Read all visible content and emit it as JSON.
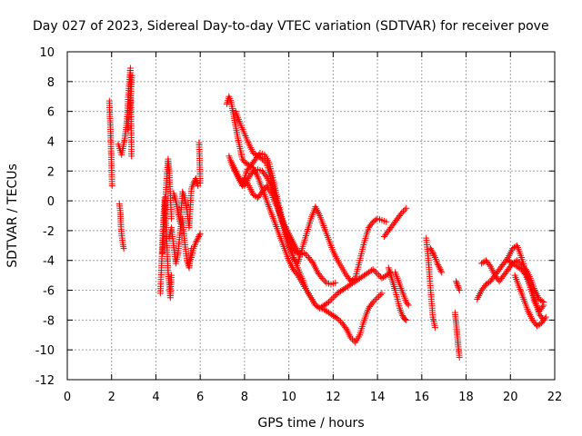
{
  "chart_data": {
    "type": "scatter",
    "title": "Day 027 of 2023, Sidereal Day-to-day VTEC variation (SDTVAR) for receiver pove",
    "xlabel": "GPS time / hours",
    "ylabel": "SDTVAR / TECUs",
    "xlim": [
      0,
      22
    ],
    "ylim": [
      -12,
      10
    ],
    "xticks": [
      0,
      2,
      4,
      6,
      8,
      10,
      12,
      14,
      16,
      18,
      20,
      22
    ],
    "yticks": [
      -12,
      -10,
      -8,
      -6,
      -4,
      -2,
      0,
      2,
      4,
      6,
      8,
      10
    ],
    "grid": true,
    "marker": "+",
    "color": "#ff0000",
    "tracks": [
      {
        "x": [
          1.9,
          1.92,
          1.95,
          1.98,
          2.0,
          2.02
        ],
        "y": [
          6.7,
          5.8,
          4.8,
          3.2,
          2.2,
          1.0
        ]
      },
      {
        "x": [
          2.35,
          2.4,
          2.42,
          2.45,
          2.5,
          2.55
        ],
        "y": [
          -0.2,
          -0.8,
          -1.6,
          -2.2,
          -2.8,
          -3.2
        ]
      },
      {
        "x": [
          2.3,
          2.45,
          2.6,
          2.7,
          2.75,
          2.8,
          2.85,
          2.9
        ],
        "y": [
          3.8,
          3.1,
          4.2,
          5.5,
          6.8,
          8.0,
          8.9,
          3.0
        ]
      },
      {
        "x": [
          2.72,
          2.78,
          2.82,
          2.87,
          2.92
        ],
        "y": [
          4.8,
          5.6,
          6.2,
          7.2,
          8.4
        ]
      },
      {
        "x": [
          4.2,
          4.25,
          4.3,
          4.35,
          4.4,
          4.45,
          4.5,
          4.55,
          4.6,
          4.65,
          4.7
        ],
        "y": [
          -6.2,
          -4.5,
          -2.5,
          -1.0,
          0.2,
          -1.5,
          -3.0,
          -4.8,
          -5.5,
          -6.5,
          -5.0
        ]
      },
      {
        "x": [
          4.3,
          4.35,
          4.4,
          4.45,
          4.5,
          4.55,
          4.6,
          4.65,
          4.7
        ],
        "y": [
          -3.5,
          -2.2,
          -0.8,
          0.6,
          1.8,
          2.8,
          2.0,
          0.5,
          -1.2
        ]
      },
      {
        "x": [
          4.6,
          4.7,
          4.8,
          4.9,
          5.0,
          5.1,
          5.2,
          5.3,
          5.4,
          5.5,
          5.6
        ],
        "y": [
          -2.5,
          -1.8,
          -3.0,
          -4.2,
          -3.5,
          -2.0,
          -1.2,
          -2.8,
          -4.0,
          -4.5,
          -3.2
        ]
      },
      {
        "x": [
          4.8,
          4.9,
          5.0,
          5.1,
          5.2,
          5.3,
          5.4,
          5.5,
          5.6,
          5.7,
          5.8,
          5.9
        ],
        "y": [
          0.5,
          0.0,
          -0.8,
          -1.5,
          0.6,
          0.2,
          -0.6,
          -1.8,
          0.8,
          1.2,
          1.5,
          1.0
        ]
      },
      {
        "x": [
          5.5,
          5.6,
          5.7,
          5.8,
          5.9,
          6.0
        ],
        "y": [
          -4.2,
          -3.8,
          -3.2,
          -2.8,
          -2.5,
          -2.2
        ]
      },
      {
        "x": [
          5.95,
          6.0
        ],
        "y": [
          3.9,
          1.2
        ]
      },
      {
        "x": [
          7.2,
          7.3,
          7.4,
          7.5,
          7.6,
          7.7,
          7.8,
          7.9,
          8.0,
          8.2,
          8.4,
          8.6,
          8.8,
          9.0,
          9.2,
          9.4,
          9.6,
          9.8,
          10.0,
          10.2,
          10.4,
          10.6,
          10.8,
          11.0,
          11.2,
          11.4,
          11.6,
          11.8,
          12.0,
          12.2,
          12.4,
          12.6,
          12.8,
          13.0,
          13.2,
          13.4,
          13.6,
          13.8,
          14.0,
          14.2,
          14.4,
          14.6
        ],
        "y": [
          6.5,
          7.0,
          6.6,
          5.8,
          5.0,
          4.2,
          3.5,
          2.8,
          2.6,
          2.4,
          2.2,
          1.6,
          0.8,
          0.0,
          -0.8,
          -1.6,
          -2.4,
          -3.2,
          -4.0,
          -4.6,
          -5.0,
          -5.5,
          -6.0,
          -6.5,
          -7.0,
          -7.2,
          -7.0,
          -6.8,
          -6.5,
          -6.2,
          -6.0,
          -5.8,
          -5.6,
          -5.4,
          -5.2,
          -5.0,
          -4.8,
          -4.6,
          -4.9,
          -5.2,
          -5.0,
          -4.8
        ]
      },
      {
        "x": [
          7.6,
          7.8,
          8.0,
          8.2,
          8.4,
          8.6,
          8.8,
          9.0,
          9.2,
          9.4,
          9.6,
          9.8,
          10.0,
          10.2,
          10.4,
          10.6,
          10.8,
          11.0,
          11.2,
          11.4,
          11.6,
          11.8,
          12.0,
          12.2,
          12.4,
          12.6,
          12.8,
          13.0,
          13.2,
          13.4,
          13.6,
          13.8,
          14.0,
          14.2
        ],
        "y": [
          6.0,
          5.2,
          4.5,
          3.8,
          3.2,
          3.0,
          2.8,
          2.5,
          1.5,
          0.2,
          -1.0,
          -2.0,
          -3.0,
          -3.8,
          -4.5,
          -5.2,
          -6.0,
          -6.5,
          -7.0,
          -7.2,
          -7.3,
          -7.5,
          -7.7,
          -7.9,
          -8.2,
          -8.6,
          -9.2,
          -9.5,
          -9.0,
          -8.0,
          -7.2,
          -6.8,
          -6.5,
          -6.2
        ]
      },
      {
        "x": [
          7.3,
          7.5,
          7.7,
          7.9,
          8.1,
          8.3,
          8.5,
          8.7,
          8.9,
          9.1,
          9.3,
          9.5,
          9.7,
          9.9,
          10.1,
          10.3,
          10.5,
          10.7,
          10.9,
          11.1,
          11.3,
          11.5,
          11.7,
          11.9,
          12.1
        ],
        "y": [
          3.0,
          2.2,
          1.6,
          1.0,
          2.0,
          2.4,
          2.8,
          3.2,
          3.1,
          2.6,
          1.4,
          0.0,
          -1.2,
          -2.2,
          -3.0,
          -3.4,
          -3.6,
          -3.5,
          -3.8,
          -4.2,
          -4.8,
          -5.2,
          -5.5,
          -5.6,
          -5.5
        ]
      },
      {
        "x": [
          7.4,
          7.6,
          7.8,
          8.0,
          8.2,
          8.4,
          8.6,
          8.8,
          9.0,
          9.2,
          9.4,
          9.6,
          9.8,
          10.0,
          10.2,
          10.4,
          10.6,
          10.8,
          11.0,
          11.2,
          11.4,
          11.6,
          11.8,
          12.0,
          12.2,
          12.4,
          12.6,
          12.8,
          13.0,
          13.2,
          13.4,
          13.6,
          13.8,
          14.0,
          14.2,
          14.4
        ],
        "y": [
          2.6,
          2.0,
          1.4,
          1.0,
          1.6,
          2.0,
          2.1,
          2.0,
          1.6,
          1.0,
          0.2,
          -0.8,
          -1.8,
          -2.8,
          -3.8,
          -4.2,
          -3.2,
          -2.2,
          -1.2,
          -0.4,
          -1.0,
          -1.8,
          -2.6,
          -3.4,
          -4.0,
          -4.5,
          -5.0,
          -5.4,
          -5.2,
          -4.0,
          -2.8,
          -1.8,
          -1.4,
          -1.2,
          -1.3,
          -1.4
        ]
      },
      {
        "x": [
          8.0,
          8.2,
          8.4,
          8.6,
          8.8,
          9.0,
          9.2,
          9.4,
          9.6,
          9.8,
          10.0,
          10.2,
          10.4
        ],
        "y": [
          1.5,
          1.0,
          0.4,
          0.2,
          0.6,
          1.0,
          0.5,
          -0.2,
          -0.9,
          -1.6,
          -2.2,
          -2.8,
          -3.4
        ]
      },
      {
        "x": [
          14.3,
          14.5,
          14.7,
          14.9,
          15.1,
          15.3
        ],
        "y": [
          -2.4,
          -2.0,
          -1.6,
          -1.2,
          -0.8,
          -0.5
        ]
      },
      {
        "x": [
          14.5,
          14.6,
          14.7,
          14.8,
          14.9,
          15.0,
          15.1,
          15.2,
          15.3
        ],
        "y": [
          -4.5,
          -5.0,
          -5.5,
          -6.0,
          -6.6,
          -7.2,
          -7.6,
          -7.9,
          -8.0
        ]
      },
      {
        "x": [
          14.8,
          14.9,
          15.0,
          15.1,
          15.2,
          15.3,
          15.4
        ],
        "y": [
          -4.8,
          -5.2,
          -5.6,
          -6.0,
          -6.4,
          -6.8,
          -7.0
        ]
      },
      {
        "x": [
          16.2,
          16.3,
          16.4,
          16.5,
          16.6
        ],
        "y": [
          -2.5,
          -4.0,
          -6.0,
          -7.8,
          -8.5
        ]
      },
      {
        "x": [
          16.4,
          16.5,
          16.6,
          16.7,
          16.8,
          16.9
        ],
        "y": [
          -3.2,
          -3.5,
          -3.8,
          -4.2,
          -4.5,
          -4.8
        ]
      },
      {
        "x": [
          17.5,
          17.55,
          17.6,
          17.65,
          17.7
        ],
        "y": [
          -7.5,
          -8.2,
          -9.0,
          -9.8,
          -10.5
        ]
      },
      {
        "x": [
          17.55,
          17.6,
          17.65,
          17.7
        ],
        "y": [
          -5.4,
          -5.6,
          -5.8,
          -6.0
        ]
      },
      {
        "x": [
          18.5,
          18.7,
          18.9,
          19.1,
          19.3,
          19.5,
          19.7,
          19.9,
          20.1,
          20.3,
          20.5,
          20.7,
          20.9,
          21.1,
          21.3,
          21.5
        ],
        "y": [
          -6.6,
          -6.0,
          -5.6,
          -5.4,
          -5.0,
          -4.6,
          -4.2,
          -3.8,
          -3.2,
          -3.0,
          -3.8,
          -4.8,
          -5.8,
          -6.8,
          -7.4,
          -7.0
        ]
      },
      {
        "x": [
          18.7,
          18.9,
          19.1,
          19.3,
          19.5,
          19.7,
          19.9,
          20.1,
          20.3,
          20.5,
          20.7,
          20.9,
          21.1,
          21.3,
          21.5
        ],
        "y": [
          -4.2,
          -4.0,
          -4.4,
          -5.0,
          -5.4,
          -5.0,
          -4.6,
          -4.2,
          -4.0,
          -4.3,
          -4.6,
          -5.2,
          -6.0,
          -6.6,
          -6.8
        ]
      },
      {
        "x": [
          19.9,
          20.1,
          20.3,
          20.5,
          20.7,
          20.9,
          21.1,
          21.3,
          21.5
        ],
        "y": [
          -4.0,
          -4.2,
          -4.4,
          -4.6,
          -5.0,
          -5.8,
          -6.6,
          -7.6,
          -8.0
        ]
      },
      {
        "x": [
          20.2,
          20.4,
          20.6,
          20.8,
          21.0,
          21.2,
          21.4,
          21.6
        ],
        "y": [
          -5.0,
          -5.8,
          -6.6,
          -7.4,
          -8.0,
          -8.4,
          -8.2,
          -7.8
        ]
      }
    ]
  }
}
